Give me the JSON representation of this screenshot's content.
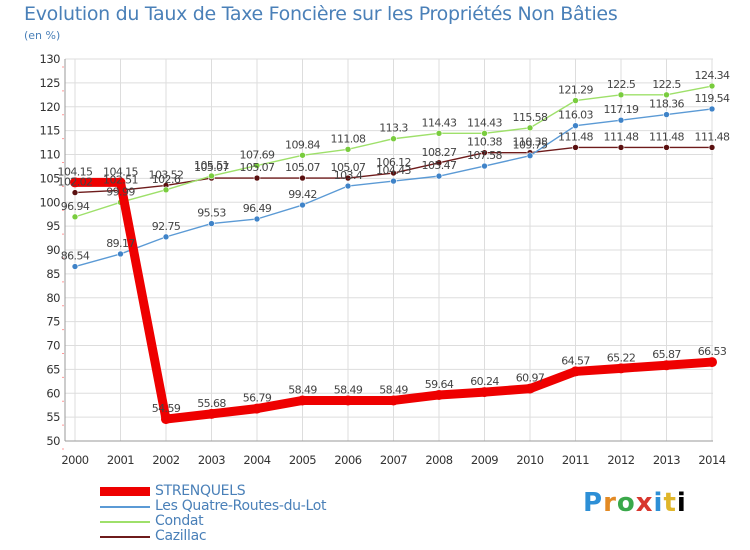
{
  "chart_data": {
    "type": "line",
    "title": "Evolution du Taux de Taxe Foncière sur les Propriétés Non Bâties",
    "subtitle": "(en %)",
    "xlabel": "",
    "ylabel": "",
    "ylim": [
      50,
      130
    ],
    "yticks": [
      50,
      55,
      60,
      65,
      70,
      75,
      80,
      85,
      90,
      95,
      100,
      105,
      110,
      115,
      120,
      125,
      130
    ],
    "categories": [
      "2000",
      "2001",
      "2002",
      "2003",
      "2004",
      "2005",
      "2006",
      "2007",
      "2008",
      "2009",
      "2010",
      "2011",
      "2012",
      "2013",
      "2014"
    ],
    "grid": true,
    "legend_position": "bottom-left",
    "series": [
      {
        "name": "Cazillac",
        "color": "#6e1b1b",
        "marker": "#5a1010",
        "values": [
          102.02,
          102.51,
          103.52,
          105.07,
          105.07,
          105.07,
          105.07,
          106.12,
          108.27,
          110.38,
          110.38,
          111.48,
          111.48,
          111.48,
          111.48
        ],
        "labels": [
          "102.02",
          "102.51",
          "103.52",
          "105.07",
          "105.07",
          "105.07",
          "105.07",
          "106.12",
          "108.27",
          "110.38",
          "110.38",
          "111.48",
          "111.48",
          "111.48",
          "111.48"
        ]
      },
      {
        "name": "Les Quatre-Routes-du-Lot",
        "color": "#5b9ad5",
        "marker": "#3f83c8",
        "values": [
          86.54,
          89.17,
          92.75,
          95.53,
          96.49,
          99.42,
          103.4,
          104.43,
          105.47,
          107.58,
          109.75,
          116.03,
          117.19,
          118.36,
          119.54
        ],
        "labels": [
          "86.54",
          "89.17",
          "92.75",
          "95.53",
          "96.49",
          "99.42",
          "103.4",
          "104.43",
          "105.47",
          "107.58",
          "109.75",
          "116.03",
          "117.19",
          "118.36",
          "119.54"
        ]
      },
      {
        "name": "Condat",
        "color": "#9ee06a",
        "marker": "#79cc3e",
        "values": [
          96.94,
          99.99,
          102.6,
          105.51,
          107.69,
          109.84,
          111.08,
          113.3,
          114.43,
          114.43,
          115.58,
          121.29,
          122.5,
          122.5,
          124.34
        ],
        "labels": [
          "96.94",
          "99.99",
          "102.6",
          "105.51",
          "107.69",
          "109.84",
          "111.08",
          "113.3",
          "114.43",
          "114.43",
          "115.58",
          "121.29",
          "122.5",
          "122.5",
          "124.34"
        ]
      },
      {
        "name": "STRENQUELS",
        "color": "#ee0000",
        "marker": "#ee0000",
        "values": [
          104.15,
          104.15,
          54.59,
          55.68,
          56.79,
          58.49,
          58.49,
          58.49,
          59.64,
          60.24,
          60.97,
          64.57,
          65.22,
          65.87,
          66.53
        ],
        "labels": [
          "104.15",
          "104.15",
          "54.59",
          "55.68",
          "56.79",
          "58.49",
          "58.49",
          "58.49",
          "59.64",
          "60.24",
          "60.97",
          "64.57",
          "65.22",
          "65.87",
          "66.53"
        ]
      }
    ]
  },
  "legend": [
    {
      "name": "STRENQUELS",
      "color": "#ee0000",
      "thick": true
    },
    {
      "name": "Les Quatre-Routes-du-Lot",
      "color": "#5b9ad5",
      "thick": false
    },
    {
      "name": "Condat",
      "color": "#9ee06a",
      "thick": false
    },
    {
      "name": "Cazillac",
      "color": "#6e1b1b",
      "thick": false
    }
  ],
  "logo": {
    "letters": [
      "P",
      "r",
      "o",
      "x",
      "i",
      "t",
      "i"
    ]
  }
}
